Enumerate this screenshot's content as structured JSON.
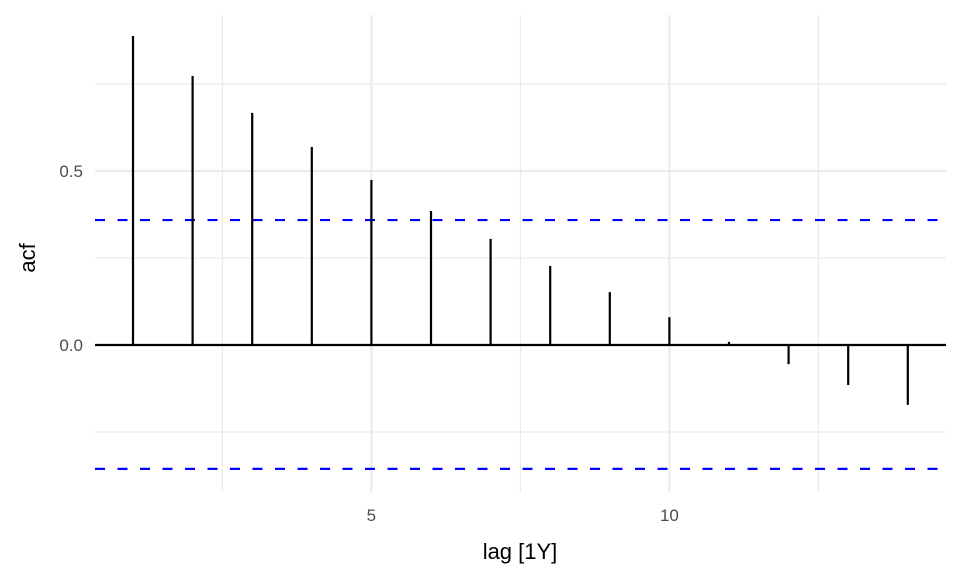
{
  "chart_data": {
    "type": "bar",
    "subtype": "acf-lollipop",
    "title": "",
    "xlabel": "lag [1Y]",
    "ylabel": "acf",
    "x": [
      1,
      2,
      3,
      4,
      5,
      6,
      7,
      8,
      9,
      10,
      11,
      12,
      13,
      14
    ],
    "values": [
      0.888,
      0.773,
      0.667,
      0.569,
      0.474,
      0.385,
      0.305,
      0.227,
      0.152,
      0.08,
      0.009,
      -0.055,
      -0.115,
      -0.172
    ],
    "confidence_bounds": {
      "upper": 0.359,
      "lower": -0.356,
      "color": "#0000ff",
      "style": "dashed"
    },
    "xticks": [
      5,
      10
    ],
    "xtick_labels": [
      "5",
      "10"
    ],
    "yticks": [
      0.0,
      0.5
    ],
    "ytick_labels": [
      "0.0",
      "0.5"
    ],
    "xlim": [
      0.35,
      14.65
    ],
    "ylim": [
      -0.43,
      0.94
    ],
    "grid": true,
    "legend": null
  },
  "colors": {
    "bar": "#000000",
    "ci": "#0000ff",
    "grid": "#ebebeb",
    "zero_line": "#000000"
  }
}
